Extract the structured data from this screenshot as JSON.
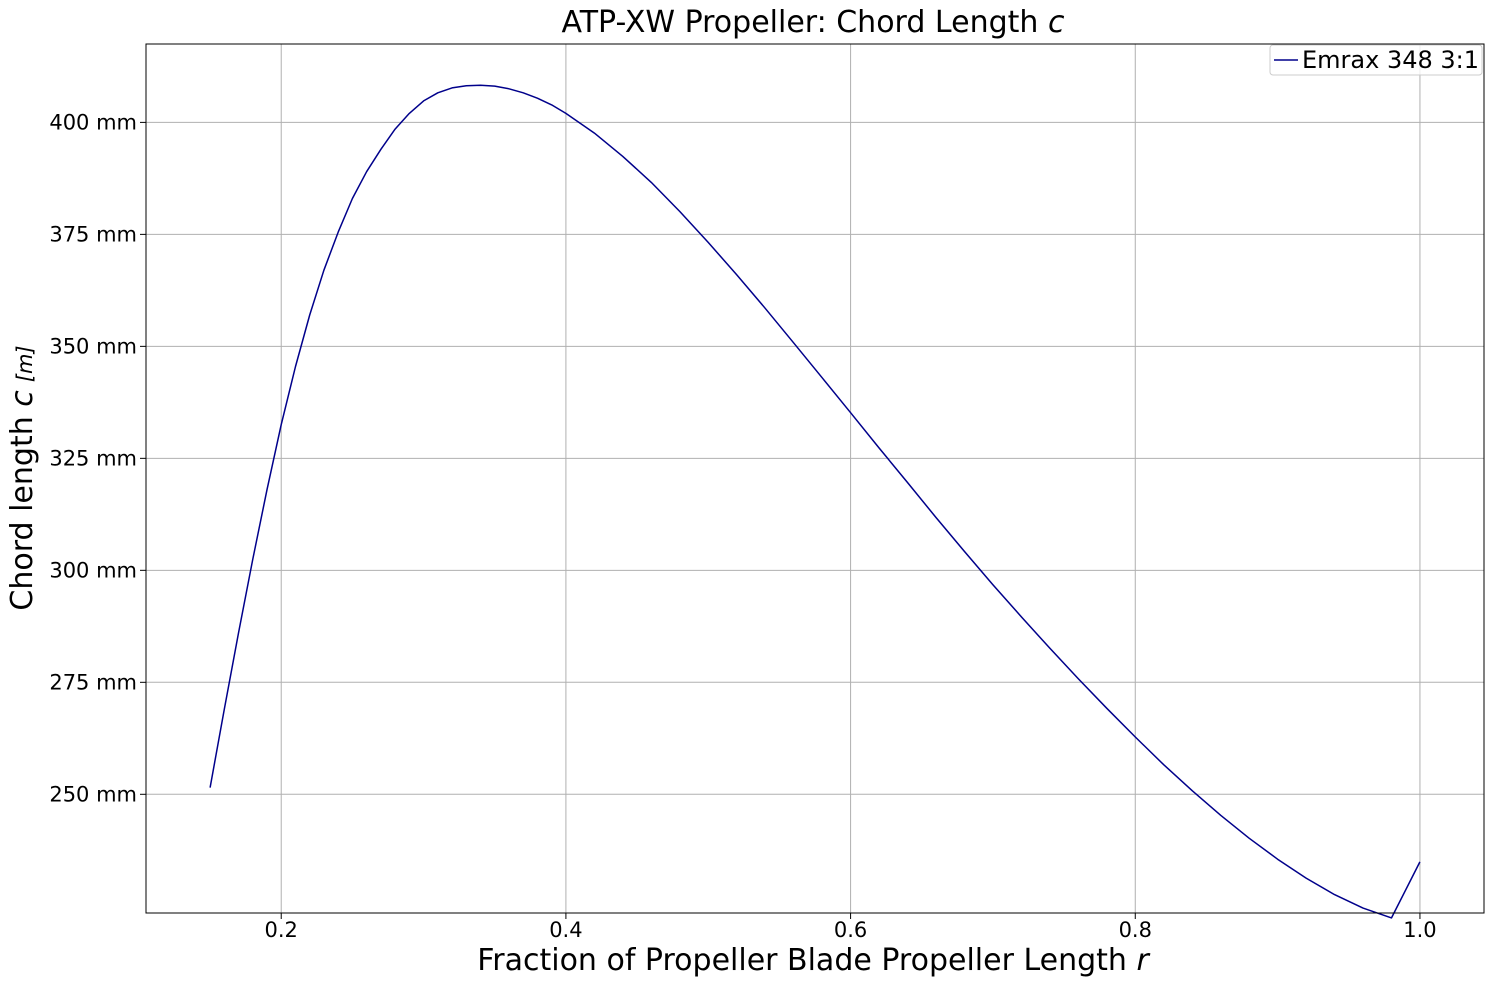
{
  "chart_data": {
    "type": "line",
    "title": "ATP-XW Propeller: Chord Length ",
    "title_symbol": "c",
    "xlabel": "Fraction of Propeller Blade Propeller Length ",
    "xlabel_symbol": "r",
    "ylabel": "Chord length ",
    "ylabel_symbol": "c",
    "ylabel_unit": "[m]",
    "xlim": [
      0.105,
      1.045
    ],
    "ylim": [
      223.5,
      417.5
    ],
    "x_ticks": [
      0.2,
      0.4,
      0.6,
      0.8,
      1.0
    ],
    "x_tick_labels": [
      "0.2",
      "0.4",
      "0.6",
      "0.8",
      "1.0"
    ],
    "y_ticks": [
      250,
      275,
      300,
      325,
      350,
      375,
      400
    ],
    "y_tick_labels": [
      "250 mm",
      "275 mm",
      "300 mm",
      "325 mm",
      "350 mm",
      "375 mm",
      "400 mm"
    ],
    "grid": true,
    "legend_position": "top-right",
    "series": [
      {
        "name": "Emrax 348 3:1",
        "color": "#00008b",
        "x": [
          0.15,
          0.16,
          0.17,
          0.18,
          0.19,
          0.2,
          0.21,
          0.22,
          0.23,
          0.24,
          0.25,
          0.26,
          0.27,
          0.28,
          0.29,
          0.3,
          0.31,
          0.32,
          0.33,
          0.34,
          0.35,
          0.36,
          0.37,
          0.38,
          0.39,
          0.4,
          0.42,
          0.44,
          0.46,
          0.48,
          0.5,
          0.52,
          0.54,
          0.56,
          0.58,
          0.6,
          0.62,
          0.64,
          0.66,
          0.68,
          0.7,
          0.72,
          0.74,
          0.76,
          0.78,
          0.8,
          0.82,
          0.84,
          0.86,
          0.88,
          0.9,
          0.92,
          0.94,
          0.96,
          0.98,
          1.0
        ],
        "y": [
          251.5,
          269.0,
          286.0,
          302.5,
          318.0,
          332.5,
          345.5,
          357.0,
          367.0,
          375.5,
          383.0,
          389.0,
          394.0,
          398.5,
          402.0,
          404.8,
          406.6,
          407.7,
          408.2,
          408.3,
          408.1,
          407.5,
          406.6,
          405.4,
          403.9,
          402.0,
          397.6,
          392.4,
          386.6,
          380.1,
          373.2,
          366.0,
          358.5,
          350.8,
          343.0,
          335.2,
          327.3,
          319.6,
          311.8,
          304.2,
          296.8,
          289.6,
          282.6,
          275.8,
          269.2,
          262.8,
          256.6,
          250.8,
          245.3,
          240.2,
          235.5,
          231.3,
          227.6,
          224.6,
          222.4,
          234.9
        ]
      }
    ]
  }
}
